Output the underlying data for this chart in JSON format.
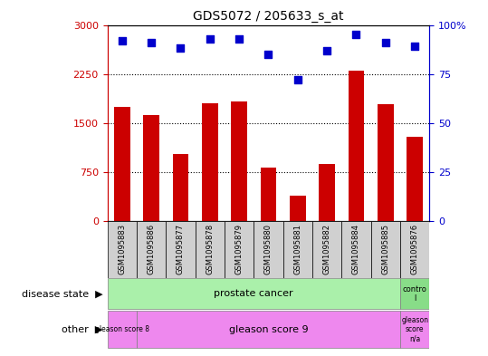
{
  "title": "GDS5072 / 205633_s_at",
  "samples": [
    "GSM1095883",
    "GSM1095886",
    "GSM1095877",
    "GSM1095878",
    "GSM1095879",
    "GSM1095880",
    "GSM1095881",
    "GSM1095882",
    "GSM1095884",
    "GSM1095885",
    "GSM1095876"
  ],
  "counts": [
    1750,
    1620,
    1020,
    1800,
    1830,
    820,
    380,
    870,
    2300,
    1790,
    1280
  ],
  "percentile_ranks": [
    92,
    91,
    88,
    93,
    93,
    85,
    72,
    87,
    95,
    91,
    89
  ],
  "bar_color": "#cc0000",
  "dot_color": "#0000cc",
  "ylim_left": [
    0,
    3000
  ],
  "ylim_right": [
    0,
    100
  ],
  "yticks_left": [
    0,
    750,
    1500,
    2250,
    3000
  ],
  "yticks_right": [
    0,
    25,
    50,
    75,
    100
  ],
  "bg_color": "#ffffff",
  "plot_bg_color": "#ffffff",
  "xtick_bg_color": "#d0d0d0",
  "green_color": "#aaf0aa",
  "green_dark": "#88dd88",
  "pink_color": "#ee88ee",
  "pink_dark": "#dd66dd"
}
